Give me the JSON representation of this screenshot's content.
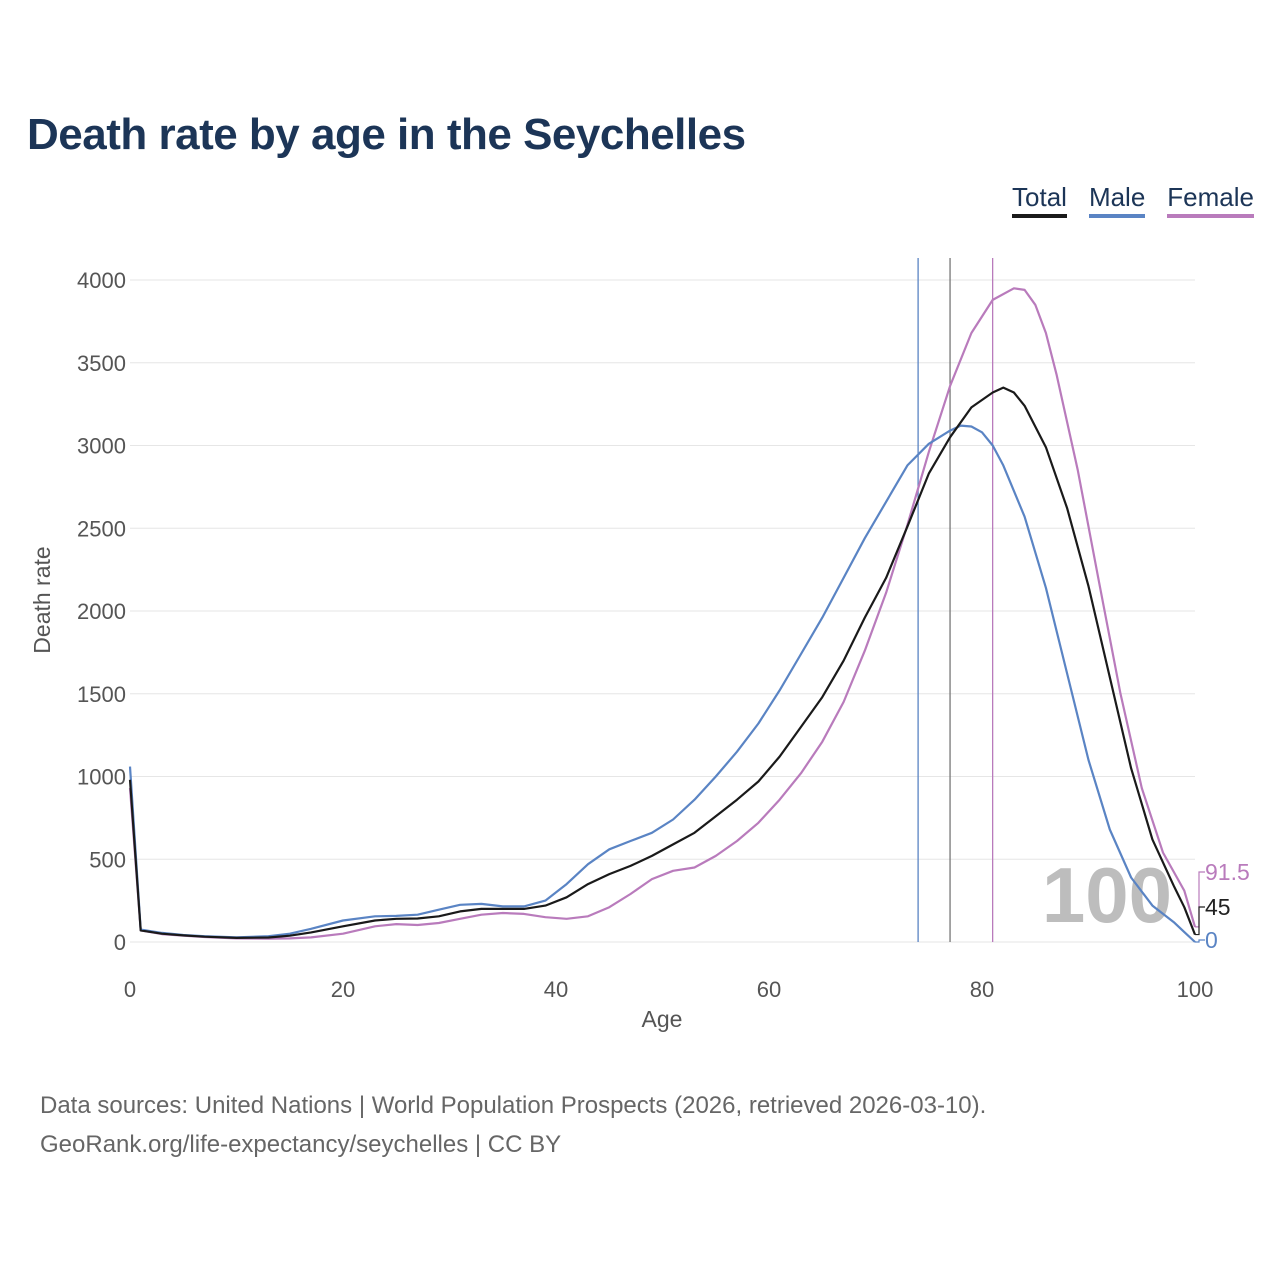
{
  "title": "Death rate by age in the Seychelles",
  "legend": {
    "total": "Total",
    "male": "Male",
    "female": "Female"
  },
  "colors": {
    "total": "#1a1a1a",
    "male": "#5a84c4",
    "female": "#b97bbc",
    "title": "#1c3557",
    "grid": "#e6e6e6",
    "watermark": "#bdbdbd"
  },
  "source": {
    "line1": "Data sources: United Nations | World Population Prospects (2026, retrieved 2026-03-10).",
    "line2": "GeoRank.org/life-expectancy/seychelles | CC BY"
  },
  "chart_data": {
    "type": "line",
    "title": "Death rate by age in the Seychelles",
    "xlabel": "Age",
    "ylabel": "Death rate",
    "xlim": [
      0,
      100
    ],
    "ylim": [
      0,
      4100
    ],
    "xticks": [
      0,
      20,
      40,
      60,
      80,
      100
    ],
    "yticks": [
      0,
      500,
      1000,
      1500,
      2000,
      2500,
      3000,
      3500,
      4000
    ],
    "grid": true,
    "legend_position": "top-right",
    "selected_age": "100",
    "life_expectancy_markers": [
      {
        "series": "Male",
        "age": 74
      },
      {
        "series": "Total",
        "age": 77
      },
      {
        "series": "Female",
        "age": 81
      }
    ],
    "end_values": [
      {
        "series": "Female",
        "label": "91.5"
      },
      {
        "series": "Total",
        "label": "45"
      },
      {
        "series": "Male",
        "label": "0"
      }
    ],
    "series": [
      {
        "name": "Total",
        "points": [
          [
            0,
            980
          ],
          [
            1,
            70
          ],
          [
            3,
            50
          ],
          [
            5,
            40
          ],
          [
            7,
            32
          ],
          [
            10,
            25
          ],
          [
            13,
            27
          ],
          [
            15,
            38
          ],
          [
            17,
            58
          ],
          [
            20,
            95
          ],
          [
            23,
            130
          ],
          [
            25,
            140
          ],
          [
            27,
            142
          ],
          [
            29,
            155
          ],
          [
            31,
            185
          ],
          [
            33,
            200
          ],
          [
            35,
            200
          ],
          [
            37,
            200
          ],
          [
            39,
            220
          ],
          [
            41,
            270
          ],
          [
            43,
            350
          ],
          [
            45,
            410
          ],
          [
            47,
            460
          ],
          [
            49,
            520
          ],
          [
            51,
            590
          ],
          [
            53,
            660
          ],
          [
            55,
            760
          ],
          [
            57,
            860
          ],
          [
            59,
            970
          ],
          [
            61,
            1120
          ],
          [
            63,
            1300
          ],
          [
            65,
            1480
          ],
          [
            67,
            1700
          ],
          [
            69,
            1960
          ],
          [
            71,
            2200
          ],
          [
            73,
            2510
          ],
          [
            75,
            2830
          ],
          [
            77,
            3050
          ],
          [
            79,
            3230
          ],
          [
            81,
            3320
          ],
          [
            82,
            3350
          ],
          [
            83,
            3320
          ],
          [
            84,
            3240
          ],
          [
            86,
            2990
          ],
          [
            88,
            2620
          ],
          [
            90,
            2150
          ],
          [
            92,
            1600
          ],
          [
            94,
            1050
          ],
          [
            96,
            620
          ],
          [
            98,
            340
          ],
          [
            99,
            210
          ],
          [
            100,
            45
          ]
        ]
      },
      {
        "name": "Male",
        "points": [
          [
            0,
            1060
          ],
          [
            1,
            75
          ],
          [
            3,
            55
          ],
          [
            5,
            42
          ],
          [
            7,
            35
          ],
          [
            10,
            28
          ],
          [
            13,
            35
          ],
          [
            15,
            50
          ],
          [
            17,
            80
          ],
          [
            20,
            130
          ],
          [
            23,
            155
          ],
          [
            25,
            158
          ],
          [
            27,
            165
          ],
          [
            29,
            195
          ],
          [
            31,
            225
          ],
          [
            33,
            230
          ],
          [
            35,
            215
          ],
          [
            37,
            215
          ],
          [
            39,
            250
          ],
          [
            41,
            350
          ],
          [
            43,
            470
          ],
          [
            45,
            560
          ],
          [
            47,
            610
          ],
          [
            49,
            660
          ],
          [
            51,
            740
          ],
          [
            53,
            860
          ],
          [
            55,
            1000
          ],
          [
            57,
            1150
          ],
          [
            59,
            1320
          ],
          [
            61,
            1520
          ],
          [
            63,
            1740
          ],
          [
            65,
            1960
          ],
          [
            67,
            2200
          ],
          [
            69,
            2440
          ],
          [
            71,
            2660
          ],
          [
            73,
            2880
          ],
          [
            75,
            3010
          ],
          [
            77,
            3090
          ],
          [
            78,
            3120
          ],
          [
            79,
            3115
          ],
          [
            80,
            3080
          ],
          [
            81,
            3000
          ],
          [
            82,
            2880
          ],
          [
            84,
            2570
          ],
          [
            86,
            2140
          ],
          [
            88,
            1620
          ],
          [
            90,
            1100
          ],
          [
            92,
            680
          ],
          [
            94,
            390
          ],
          [
            96,
            220
          ],
          [
            98,
            120
          ],
          [
            99,
            60
          ],
          [
            100,
            0
          ]
        ]
      },
      {
        "name": "Female",
        "points": [
          [
            0,
            930
          ],
          [
            1,
            70
          ],
          [
            3,
            48
          ],
          [
            5,
            38
          ],
          [
            7,
            30
          ],
          [
            10,
            22
          ],
          [
            13,
            20
          ],
          [
            15,
            22
          ],
          [
            17,
            28
          ],
          [
            20,
            50
          ],
          [
            23,
            95
          ],
          [
            25,
            108
          ],
          [
            27,
            103
          ],
          [
            29,
            115
          ],
          [
            31,
            140
          ],
          [
            33,
            165
          ],
          [
            35,
            175
          ],
          [
            37,
            170
          ],
          [
            39,
            150
          ],
          [
            41,
            140
          ],
          [
            43,
            155
          ],
          [
            45,
            210
          ],
          [
            47,
            290
          ],
          [
            49,
            380
          ],
          [
            51,
            430
          ],
          [
            53,
            450
          ],
          [
            55,
            520
          ],
          [
            57,
            610
          ],
          [
            59,
            720
          ],
          [
            61,
            860
          ],
          [
            63,
            1020
          ],
          [
            65,
            1210
          ],
          [
            67,
            1450
          ],
          [
            69,
            1760
          ],
          [
            71,
            2110
          ],
          [
            73,
            2520
          ],
          [
            75,
            2960
          ],
          [
            77,
            3360
          ],
          [
            79,
            3680
          ],
          [
            81,
            3880
          ],
          [
            83,
            3950
          ],
          [
            84,
            3940
          ],
          [
            85,
            3850
          ],
          [
            86,
            3680
          ],
          [
            87,
            3430
          ],
          [
            89,
            2850
          ],
          [
            91,
            2170
          ],
          [
            93,
            1500
          ],
          [
            95,
            930
          ],
          [
            97,
            540
          ],
          [
            99,
            310
          ],
          [
            100,
            91.5
          ]
        ]
      }
    ]
  }
}
